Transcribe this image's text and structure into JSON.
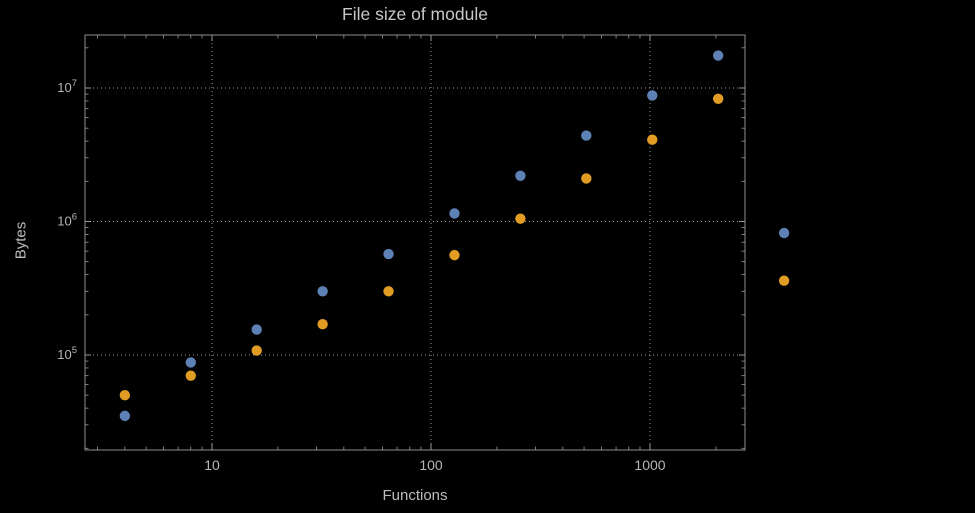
{
  "chart_data": {
    "type": "scatter",
    "title": "File size of module",
    "xlabel": "Functions",
    "ylabel": "Bytes",
    "x_scale": "log",
    "y_scale": "log",
    "grid": true,
    "legend": "none",
    "xlim": [
      2.6,
      2700
    ],
    "ylim": [
      19000,
      25000000
    ],
    "x": [
      4,
      8,
      16,
      32,
      64,
      128,
      256,
      512,
      1024,
      2048,
      4096
    ],
    "series": [
      {
        "name": "series-blue",
        "color": "#5e81b5",
        "values": [
          35000,
          88000,
          155000,
          300000,
          570000,
          1150000,
          2200000,
          4400000,
          8800000,
          17500000,
          820000
        ]
      },
      {
        "name": "series-orange",
        "color": "#e19c24",
        "values": [
          50000,
          70000,
          108000,
          170000,
          300000,
          560000,
          1050000,
          2100000,
          4100000,
          8300000,
          360000
        ]
      }
    ],
    "x_ticks": [
      {
        "value": 10,
        "label": "10"
      },
      {
        "value": 100,
        "label": "100"
      },
      {
        "value": 1000,
        "label": "1000"
      }
    ],
    "y_ticks": [
      {
        "value": 100000,
        "base": "10",
        "exponent": "5"
      },
      {
        "value": 1000000,
        "base": "10",
        "exponent": "6"
      },
      {
        "value": 10000000,
        "base": "10",
        "exponent": "7"
      }
    ],
    "colors": {
      "background": "#000000",
      "grid": "#9a9a9a",
      "frame": "#8f8f8f",
      "tick": "#9a9a9a",
      "text": "#c7c7c7",
      "tick_text": "#b5b5b5"
    }
  }
}
